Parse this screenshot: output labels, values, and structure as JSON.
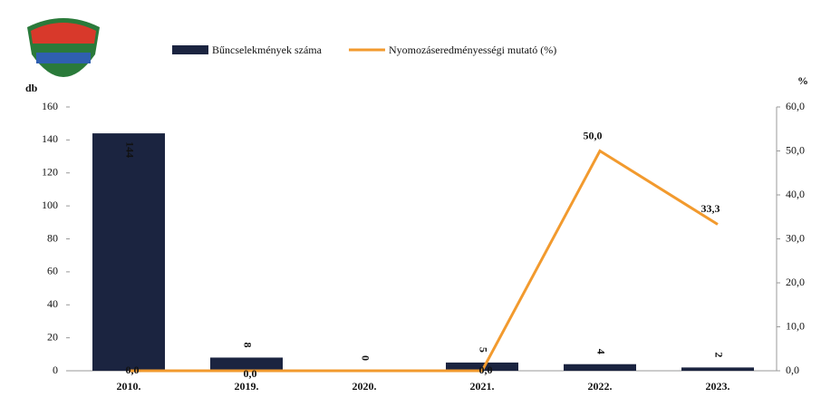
{
  "chart_data": {
    "type": "combo",
    "categories": [
      "2010.",
      "2019.",
      "2020.",
      "2021.",
      "2022.",
      "2023."
    ],
    "ylabel": "db",
    "y2label": "%",
    "ylim": [
      0,
      160
    ],
    "yticks": [
      0,
      20,
      40,
      60,
      80,
      100,
      120,
      140,
      160
    ],
    "y2lim": [
      0,
      60
    ],
    "y2ticks": [
      {
        "value": 0,
        "label": "0,0"
      },
      {
        "value": 10,
        "label": "10,0"
      },
      {
        "value": 20,
        "label": "20,0"
      },
      {
        "value": 30,
        "label": "30,0"
      },
      {
        "value": 40,
        "label": "40,0"
      },
      {
        "value": 50,
        "label": "50,0"
      },
      {
        "value": 60,
        "label": "60,0"
      }
    ],
    "series": [
      {
        "name": "Bűncselekmények száma",
        "type": "bar",
        "color": "#1b2440",
        "values": [
          144,
          8,
          0,
          5,
          4,
          2
        ]
      },
      {
        "name": "Nyomozáseredményességi mutató (%)",
        "type": "line",
        "axis": "y2",
        "color": "#f29a2e",
        "values": [
          0,
          0,
          0,
          0,
          50,
          33.3
        ],
        "value_labels": [
          "0,0",
          "0,0",
          null,
          "0,0",
          "50,0",
          "33,3"
        ]
      }
    ]
  }
}
